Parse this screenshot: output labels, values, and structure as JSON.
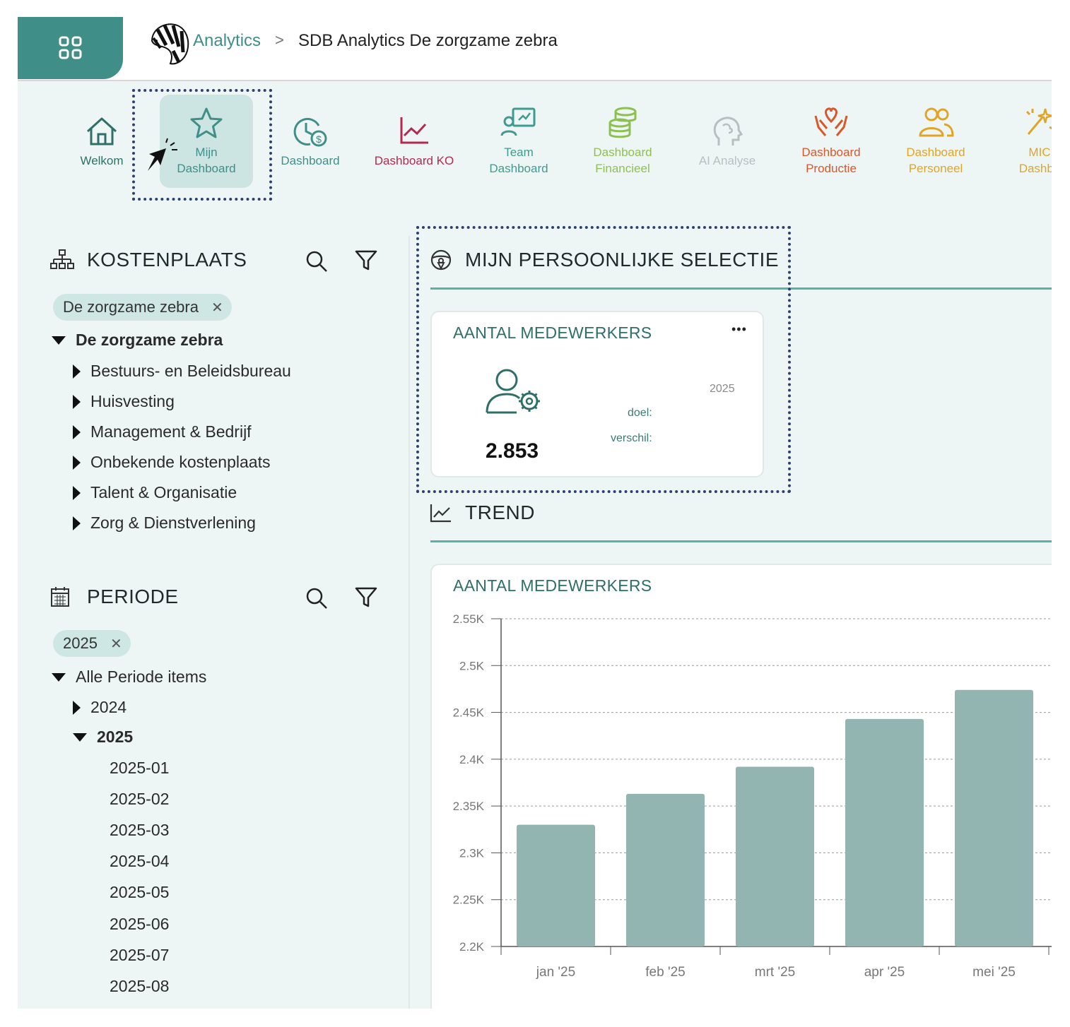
{
  "header": {
    "breadcrumb_root": "Analytics",
    "breadcrumb_separator": ">",
    "breadcrumb_page": "SDB Analytics De zorgzame zebra"
  },
  "nav": [
    {
      "label": "Welkom",
      "icon": "home-icon",
      "color": "#2e6f68"
    },
    {
      "label": "Mijn\nDashboard",
      "icon": "star-icon",
      "color": "#3f8f88",
      "active": true
    },
    {
      "label": "Dashboard",
      "icon": "clock-money-icon",
      "color": "#3f8f88"
    },
    {
      "label": "Dashboard KO",
      "icon": "line-chart-icon",
      "color": "#b3294f"
    },
    {
      "label": "Team\nDashboard",
      "icon": "team-presentation-icon",
      "color": "#3f9a8f"
    },
    {
      "label": "Dashboard\nFinancieel",
      "icon": "coins-icon",
      "color": "#8cc152"
    },
    {
      "label": "AI Analyse",
      "icon": "brain-head-icon",
      "color": "#b9bfc0"
    },
    {
      "label": "Dashboard\nProductie",
      "icon": "hands-heart-icon",
      "color": "#d9572b"
    },
    {
      "label": "Dashboard\nPersoneel",
      "icon": "people-icon",
      "color": "#e0a526"
    },
    {
      "label": "MIC\nDashbo",
      "icon": "sparkle-icon",
      "color": "#e0a526"
    }
  ],
  "kostenplaats": {
    "title": "KOSTENPLAATS",
    "chip": "De zorgzame zebra",
    "root": "De zorgzame zebra",
    "children": [
      "Bestuurs- en Beleidsbureau",
      "Huisvesting",
      "Management & Bedrijf",
      "Onbekende kostenplaats",
      "Talent & Organisatie",
      "Zorg & Dienstverlening"
    ]
  },
  "periode": {
    "title": "PERIODE",
    "chip": "2025",
    "root": "Alle Periode items",
    "year_collapsed": "2024",
    "year_expanded": "2025",
    "months": [
      "2025-01",
      "2025-02",
      "2025-03",
      "2025-04",
      "2025-05",
      "2025-06",
      "2025-07",
      "2025-08"
    ]
  },
  "selection": {
    "title": "MIJN PERSOONLIJKE SELECTIE",
    "card_title": "AANTAL MEDEWERKERS",
    "menu": "•••",
    "value": "2.853",
    "year": "2025",
    "doel_label": "doel:",
    "verschil_label": "verschil:"
  },
  "trend": {
    "title": "TREND",
    "card_title": "AANTAL MEDEWERKERS"
  },
  "chart_data": {
    "type": "bar",
    "categories": [
      "jan '25",
      "feb '25",
      "mrt '25",
      "apr '25",
      "mei '25"
    ],
    "values": [
      2330,
      2363,
      2392,
      2443,
      2474
    ],
    "yticks": [
      "2.55K",
      "2.5K",
      "2.45K",
      "2.4K",
      "2.35K",
      "2.3K",
      "2.25K",
      "2.2K"
    ],
    "ylim": [
      2200,
      2550
    ],
    "grid": true,
    "bar_color": "#93b5b1"
  }
}
